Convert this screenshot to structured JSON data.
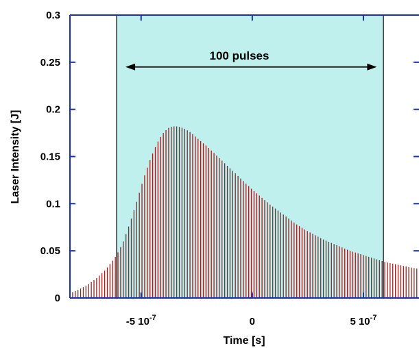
{
  "chart_data": {
    "type": "bar",
    "xlabel": "Time [s]",
    "ylabel": "Laser Intensity [J]",
    "xlim": [
      -8.2e-07,
      7.5e-07
    ],
    "ylim": [
      0,
      0.3
    ],
    "x_ticks": [
      {
        "value": -5e-07,
        "mantissa": "-5 10",
        "exponent": "-7"
      },
      {
        "value": 0,
        "mantissa": "0",
        "exponent": ""
      },
      {
        "value": 5e-07,
        "mantissa": "5 10",
        "exponent": "-7"
      }
    ],
    "y_ticks": [
      {
        "value": 0,
        "label": "0"
      },
      {
        "value": 0.05,
        "label": "0.05"
      },
      {
        "value": 0.1,
        "label": "0.1"
      },
      {
        "value": 0.15,
        "label": "0.15"
      },
      {
        "value": 0.2,
        "label": "0.2"
      },
      {
        "value": 0.25,
        "label": "0.25"
      },
      {
        "value": 0.3,
        "label": "0.3"
      }
    ],
    "grid": false,
    "highlight_region": {
      "x_start": -6.1e-07,
      "x_end": 5.9e-07,
      "color": "#bff0ee"
    },
    "annotation": {
      "text": "100 pulses",
      "x_start": -5.7e-07,
      "x_end": 5.6e-07,
      "y": 0.245
    },
    "series": [
      {
        "color": "#9b2020",
        "pulse_spacing": 1.2e-08,
        "x": [
          -8.2e-07,
          -7.8e-07,
          -7.4e-07,
          -7e-07,
          -6.6e-07,
          -6.2e-07,
          -6e-07,
          -5.8e-07,
          -5.6e-07,
          -5.4e-07,
          -5.2e-07,
          -5e-07,
          -4.8e-07,
          -4.6e-07,
          -4.4e-07,
          -4.2e-07,
          -4e-07,
          -3.8e-07,
          -3.6e-07,
          -3.4e-07,
          -3.2e-07,
          -3e-07,
          -2.8e-07,
          -2.6e-07,
          -2.4e-07,
          -2.2e-07,
          -2e-07,
          -1.6e-07,
          -1.2e-07,
          -8e-08,
          -4e-08,
          0,
          4e-08,
          8e-08,
          1.2e-07,
          1.6e-07,
          2e-07,
          2.4e-07,
          2.8e-07,
          3.2e-07,
          3.6e-07,
          4e-07,
          4.4e-07,
          4.8e-07,
          5.2e-07,
          5.6e-07,
          6e-07,
          6.4e-07,
          6.8e-07,
          7.2e-07,
          7.5e-07
        ],
        "values": [
          0.005,
          0.009,
          0.014,
          0.021,
          0.03,
          0.042,
          0.05,
          0.06,
          0.073,
          0.087,
          0.102,
          0.118,
          0.133,
          0.146,
          0.158,
          0.168,
          0.175,
          0.18,
          0.182,
          0.182,
          0.181,
          0.179,
          0.176,
          0.172,
          0.168,
          0.164,
          0.16,
          0.151,
          0.142,
          0.133,
          0.124,
          0.115,
          0.107,
          0.099,
          0.092,
          0.085,
          0.078,
          0.072,
          0.067,
          0.062,
          0.058,
          0.054,
          0.05,
          0.047,
          0.044,
          0.041,
          0.038,
          0.036,
          0.034,
          0.032,
          0.031
        ]
      }
    ]
  },
  "colors": {
    "axis": "#1a2fa8",
    "bars": "#9b2020",
    "highlight": "#bff0ee"
  }
}
